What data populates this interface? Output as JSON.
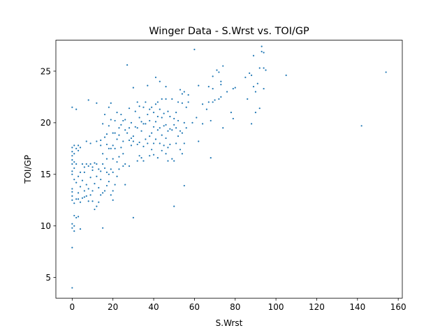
{
  "chart_data": {
    "type": "scatter",
    "title": "Winger Data - S.Wrst vs. TOI/GP",
    "xlabel": "S.Wrst",
    "ylabel": "TOI/GP",
    "xlim": [
      -8,
      162
    ],
    "ylim": [
      3,
      28
    ],
    "xticks": [
      0,
      20,
      40,
      60,
      80,
      100,
      120,
      140,
      160
    ],
    "yticks": [
      5,
      10,
      15,
      20,
      25
    ],
    "grid": false,
    "legend": "none",
    "marker_color": "#1f77b4",
    "series": [
      {
        "points": [
          [
            0,
            4.0
          ],
          [
            0,
            7.9
          ],
          [
            0,
            9.8
          ],
          [
            0,
            10.2
          ],
          [
            0,
            12.5
          ],
          [
            0,
            12.9
          ],
          [
            0,
            13.3
          ],
          [
            0,
            13.6
          ],
          [
            0,
            15.0
          ],
          [
            0,
            15.3
          ],
          [
            0,
            16.0
          ],
          [
            0,
            16.4
          ],
          [
            0,
            16.8
          ],
          [
            0,
            17.2
          ],
          [
            0,
            17.6
          ],
          [
            0,
            21.5
          ],
          [
            1,
            9.5
          ],
          [
            1,
            10.0
          ],
          [
            1,
            11.0
          ],
          [
            1,
            12.2
          ],
          [
            1,
            14.5
          ],
          [
            1,
            15.6
          ],
          [
            1,
            16.2
          ],
          [
            1,
            17.0
          ],
          [
            1,
            17.8
          ],
          [
            2,
            10.8
          ],
          [
            2,
            12.6
          ],
          [
            2,
            14.2
          ],
          [
            2,
            16.0
          ],
          [
            2,
            17.5
          ],
          [
            2,
            21.3
          ],
          [
            3,
            10.9
          ],
          [
            3,
            12.6
          ],
          [
            3,
            13.2
          ],
          [
            3,
            14.8
          ],
          [
            3,
            17.3
          ],
          [
            3,
            17.8
          ],
          [
            4,
            9.7
          ],
          [
            4,
            12.3
          ],
          [
            4,
            13.8
          ],
          [
            4,
            15.2
          ],
          [
            4,
            17.6
          ],
          [
            5,
            12.7
          ],
          [
            5,
            14.4
          ],
          [
            5,
            16.0
          ],
          [
            6,
            12.8
          ],
          [
            6,
            13.4
          ],
          [
            6,
            15.2
          ],
          [
            6,
            15.7
          ],
          [
            7,
            12.9
          ],
          [
            7,
            14.0
          ],
          [
            7,
            16.0
          ],
          [
            7,
            18.2
          ],
          [
            8,
            12.4
          ],
          [
            8,
            13.6
          ],
          [
            8,
            15.8
          ],
          [
            8,
            22.2
          ],
          [
            9,
            13.0
          ],
          [
            9,
            14.7
          ],
          [
            9,
            16.0
          ],
          [
            9,
            18.0
          ],
          [
            10,
            12.4
          ],
          [
            10,
            13.4
          ],
          [
            10,
            15.4
          ],
          [
            10,
            15.7
          ],
          [
            11,
            11.6
          ],
          [
            11,
            14.1
          ],
          [
            11,
            16.1
          ],
          [
            12,
            11.9
          ],
          [
            12,
            14.8
          ],
          [
            12,
            16.0
          ],
          [
            12,
            18.2
          ],
          [
            12,
            21.9
          ],
          [
            13,
            12.3
          ],
          [
            13,
            13.7
          ],
          [
            13,
            15.5
          ],
          [
            14,
            13.0
          ],
          [
            14,
            14.5
          ],
          [
            14,
            15.3
          ],
          [
            14,
            17.8
          ],
          [
            14,
            18.3
          ],
          [
            15,
            9.8
          ],
          [
            15,
            13.2
          ],
          [
            15,
            16.0
          ],
          [
            15,
            17.0
          ],
          [
            15,
            19.9
          ],
          [
            16,
            13.4
          ],
          [
            16,
            15.6
          ],
          [
            16,
            18.6
          ],
          [
            16,
            20.8
          ],
          [
            17,
            13.9
          ],
          [
            17,
            15.2
          ],
          [
            17,
            16.5
          ],
          [
            17,
            17.9
          ],
          [
            17,
            18.9
          ],
          [
            18,
            14.3
          ],
          [
            18,
            15.0
          ],
          [
            18,
            17.5
          ],
          [
            18,
            19.7
          ],
          [
            18,
            21.5
          ],
          [
            19,
            13.0
          ],
          [
            19,
            15.5
          ],
          [
            19,
            17.5
          ],
          [
            19,
            20.3
          ],
          [
            19,
            21.9
          ],
          [
            20,
            12.5
          ],
          [
            20,
            13.4
          ],
          [
            20,
            15.2
          ],
          [
            20,
            16.5
          ],
          [
            20,
            17.8
          ],
          [
            20,
            19.0
          ],
          [
            21,
            14.0
          ],
          [
            21,
            17.5
          ],
          [
            21,
            19.0
          ],
          [
            21,
            20.2
          ],
          [
            22,
            14.8
          ],
          [
            22,
            16.2
          ],
          [
            22,
            18.4
          ],
          [
            22,
            21.0
          ],
          [
            23,
            15.5
          ],
          [
            23,
            16.7
          ],
          [
            23,
            18.8
          ],
          [
            23,
            19.5
          ],
          [
            24,
            17.6
          ],
          [
            24,
            19.8
          ],
          [
            24,
            20.8
          ],
          [
            25,
            15.8
          ],
          [
            25,
            17.0
          ],
          [
            25,
            18.2
          ],
          [
            25,
            20.2
          ],
          [
            26,
            14.0
          ],
          [
            26,
            16.0
          ],
          [
            26,
            19.3
          ],
          [
            26,
            20.3
          ],
          [
            27,
            19.0
          ],
          [
            27,
            25.6
          ],
          [
            28,
            15.8
          ],
          [
            28,
            18.3
          ],
          [
            28,
            19.5
          ],
          [
            28,
            21.4
          ],
          [
            29,
            17.8
          ],
          [
            29,
            18.5
          ],
          [
            29,
            20.0
          ],
          [
            30,
            10.8
          ],
          [
            30,
            18.2
          ],
          [
            30,
            18.7
          ],
          [
            30,
            23.4
          ],
          [
            31,
            19.6
          ],
          [
            31,
            21.1
          ],
          [
            32,
            16.3
          ],
          [
            32,
            17.9
          ],
          [
            32,
            19.5
          ],
          [
            32,
            22.0
          ],
          [
            33,
            16.8
          ],
          [
            33,
            18.1
          ],
          [
            33,
            20.5
          ],
          [
            33,
            21.6
          ],
          [
            34,
            16.6
          ],
          [
            34,
            19.2
          ],
          [
            34,
            20.1
          ],
          [
            35,
            16.3
          ],
          [
            35,
            17.7
          ],
          [
            35,
            19.9
          ],
          [
            35,
            21.5
          ],
          [
            36,
            18.4
          ],
          [
            36,
            19.9
          ],
          [
            36,
            22.0
          ],
          [
            37,
            18.0
          ],
          [
            37,
            20.8
          ],
          [
            37,
            23.6
          ],
          [
            38,
            16.8
          ],
          [
            38,
            18.7
          ],
          [
            38,
            20.2
          ],
          [
            38,
            21.3
          ],
          [
            39,
            17.4
          ],
          [
            39,
            19.0
          ],
          [
            39,
            21.5
          ],
          [
            40,
            16.9
          ],
          [
            40,
            18.0
          ],
          [
            40,
            19.6
          ],
          [
            40,
            21.0
          ],
          [
            41,
            18.4
          ],
          [
            41,
            20.1
          ],
          [
            41,
            21.8
          ],
          [
            41,
            24.4
          ],
          [
            42,
            16.6
          ],
          [
            42,
            19.3
          ],
          [
            42,
            20.6
          ],
          [
            42,
            22.0
          ],
          [
            43,
            18.0
          ],
          [
            43,
            19.5
          ],
          [
            43,
            21.3
          ],
          [
            43,
            24.0
          ],
          [
            44,
            17.3
          ],
          [
            44,
            18.8
          ],
          [
            44,
            20.5
          ],
          [
            44,
            22.3
          ],
          [
            45,
            17.8
          ],
          [
            45,
            19.7
          ],
          [
            45,
            20.9
          ],
          [
            46,
            17.0
          ],
          [
            46,
            18.5
          ],
          [
            46,
            19.8
          ],
          [
            46,
            22.3
          ],
          [
            46,
            23.5
          ],
          [
            47,
            16.3
          ],
          [
            47,
            17.6
          ],
          [
            47,
            19.2
          ],
          [
            47,
            21.1
          ],
          [
            48,
            17.9
          ],
          [
            48,
            19.4
          ],
          [
            48,
            20.6
          ],
          [
            49,
            16.5
          ],
          [
            49,
            19.3
          ],
          [
            49,
            22.3
          ],
          [
            50,
            11.9
          ],
          [
            50,
            16.3
          ],
          [
            50,
            19.8
          ],
          [
            50,
            20.4
          ],
          [
            51,
            18.0
          ],
          [
            51,
            19.5
          ],
          [
            51,
            21.0
          ],
          [
            52,
            18.7
          ],
          [
            52,
            20.2
          ],
          [
            52,
            22.0
          ],
          [
            53,
            17.4
          ],
          [
            53,
            19.2
          ],
          [
            53,
            23.2
          ],
          [
            54,
            17.0
          ],
          [
            54,
            19.0
          ],
          [
            54,
            21.9
          ],
          [
            54,
            22.8
          ],
          [
            55,
            13.9
          ],
          [
            55,
            18.0
          ],
          [
            55,
            20.0
          ],
          [
            55,
            23.0
          ],
          [
            56,
            19.5
          ],
          [
            56,
            21.5
          ],
          [
            57,
            22.0
          ],
          [
            57,
            22.7
          ],
          [
            59,
            20.0
          ],
          [
            60,
            27.1
          ],
          [
            61,
            20.5
          ],
          [
            62,
            18.2
          ],
          [
            62,
            23.6
          ],
          [
            64,
            19.9
          ],
          [
            64,
            21.8
          ],
          [
            66,
            21.3
          ],
          [
            67,
            22.0
          ],
          [
            67,
            23.5
          ],
          [
            68,
            16.6
          ],
          [
            68,
            20.2
          ],
          [
            69,
            22.0
          ],
          [
            69,
            23.3
          ],
          [
            69,
            24.5
          ],
          [
            70,
            22.2
          ],
          [
            71,
            25.1
          ],
          [
            72,
            22.3
          ],
          [
            72,
            24.9
          ],
          [
            73,
            22.5
          ],
          [
            73,
            23.7
          ],
          [
            73,
            24.0
          ],
          [
            74,
            19.5
          ],
          [
            74,
            25.5
          ],
          [
            76,
            23.0
          ],
          [
            78,
            21.0
          ],
          [
            79,
            20.4
          ],
          [
            79,
            23.3
          ],
          [
            80,
            23.4
          ],
          [
            85,
            24.4
          ],
          [
            86,
            22.3
          ],
          [
            87,
            24.8
          ],
          [
            88,
            19.9
          ],
          [
            88,
            24.6
          ],
          [
            89,
            23.5
          ],
          [
            89,
            26.5
          ],
          [
            90,
            21.0
          ],
          [
            90,
            23.0
          ],
          [
            91,
            23.8
          ],
          [
            92,
            21.4
          ],
          [
            92,
            25.3
          ],
          [
            93,
            26.9
          ],
          [
            93,
            27.4
          ],
          [
            94,
            23.3
          ],
          [
            94,
            25.3
          ],
          [
            94,
            26.8
          ],
          [
            95,
            25.1
          ],
          [
            105,
            24.6
          ],
          [
            142,
            19.7
          ],
          [
            154,
            24.9
          ]
        ]
      }
    ]
  }
}
